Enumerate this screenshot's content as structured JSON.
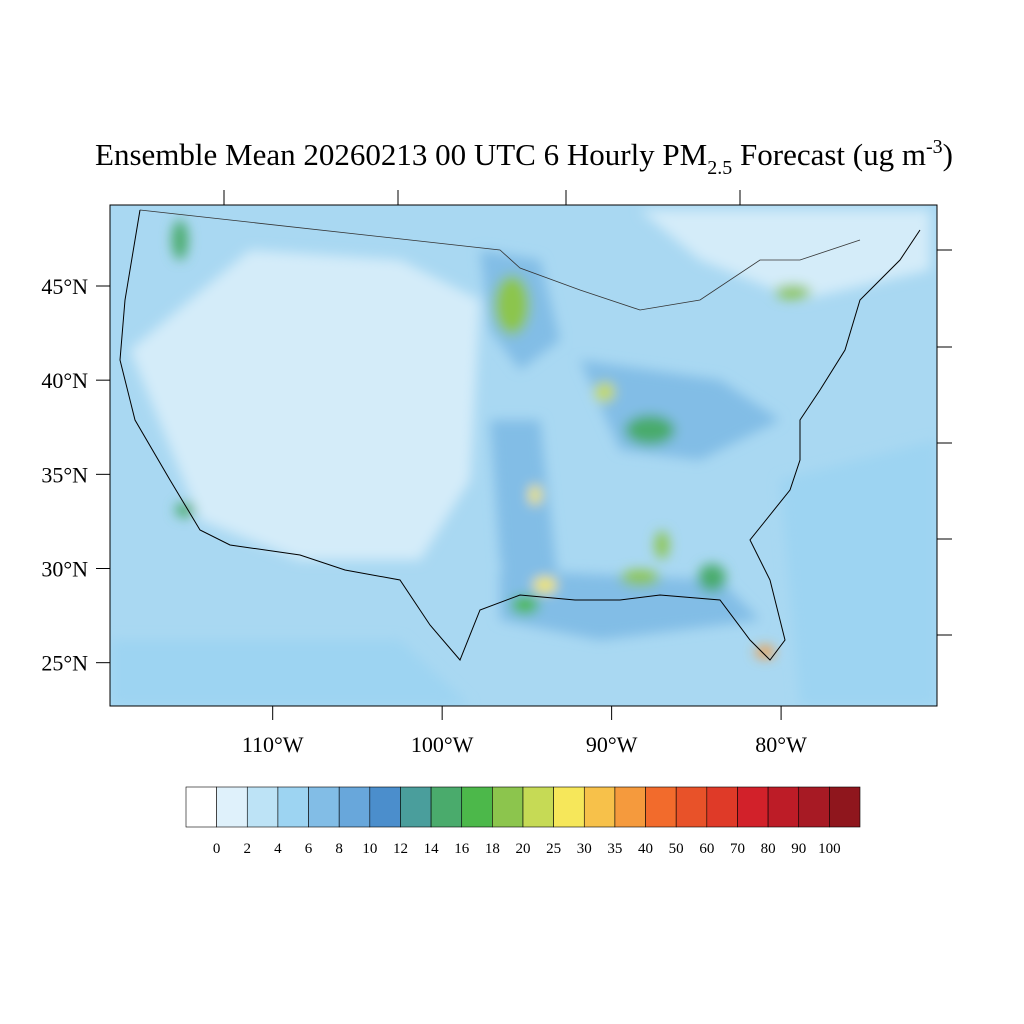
{
  "chart_data": {
    "type": "map",
    "title": {
      "main": "Ensemble Mean 20260213 00 UTC 6 Hourly PM",
      "subscript": "2.5",
      "after": " Forecast (ug m",
      "superscript": "-3",
      "end": ")"
    },
    "xlim": [
      -119.6,
      -70.8
    ],
    "ylim": [
      22.7,
      49.3
    ],
    "xticks": [
      {
        "value": -110,
        "label": "110°W"
      },
      {
        "value": -100,
        "label": "100°W"
      },
      {
        "value": -90,
        "label": "90°W"
      },
      {
        "value": -80,
        "label": "80°W"
      }
    ],
    "yticks": [
      {
        "value": 25,
        "label": "25°N"
      },
      {
        "value": 30,
        "label": "30°N"
      },
      {
        "value": 35,
        "label": "35°N"
      },
      {
        "value": 40,
        "label": "40°N"
      },
      {
        "value": 45,
        "label": "45°N"
      }
    ],
    "colorbar": {
      "levels": [
        0,
        2,
        4,
        6,
        8,
        10,
        12,
        14,
        16,
        18,
        20,
        25,
        30,
        35,
        40,
        50,
        60,
        70,
        80,
        90,
        100
      ],
      "colors": [
        "#ffffff",
        "#dff1fb",
        "#bde3f6",
        "#9dd4f2",
        "#82bde6",
        "#68a7db",
        "#4b8ecc",
        "#4a9e9c",
        "#4aab6c",
        "#4cb84a",
        "#8cc54d",
        "#c6da55",
        "#f6e75a",
        "#f7c14a",
        "#f59a3d",
        "#f26b2c",
        "#e85229",
        "#df3a28",
        "#d2212a",
        "#bd1c27",
        "#a71a24",
        "#8f161d"
      ]
    }
  }
}
